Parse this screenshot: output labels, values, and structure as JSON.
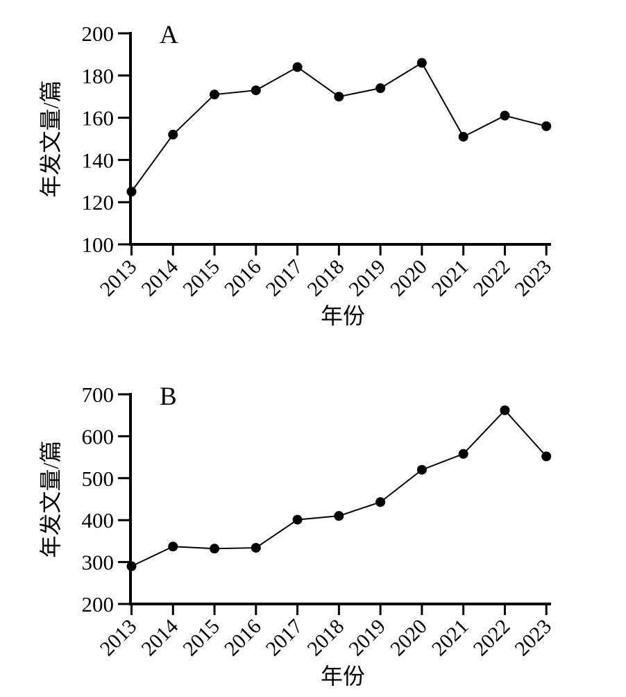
{
  "figure": {
    "background_color": "#ffffff",
    "ink_color": "#000000",
    "marker_color": "#000000"
  },
  "chart_data": [
    {
      "type": "line",
      "panel_label": "A",
      "title": "",
      "xlabel": "年份",
      "ylabel": "年发文量/篇",
      "x": [
        "2013",
        "2014",
        "2015",
        "2016",
        "2017",
        "2018",
        "2019",
        "2020",
        "2021",
        "2022",
        "2023"
      ],
      "values": [
        125,
        152,
        171,
        173,
        184,
        170,
        174,
        186,
        151,
        161,
        156
      ],
      "ylim": [
        100,
        200
      ],
      "ytick_step": 20,
      "yticks": [
        100,
        120,
        140,
        160,
        180,
        200
      ],
      "grid": false,
      "legend": "none",
      "marker": "filled-circle",
      "line_color": "#000000"
    },
    {
      "type": "line",
      "panel_label": "B",
      "title": "",
      "xlabel": "年份",
      "ylabel": "年发文量/篇",
      "x": [
        "2013",
        "2014",
        "2015",
        "2016",
        "2017",
        "2018",
        "2019",
        "2020",
        "2021",
        "2022",
        "2023"
      ],
      "values": [
        290,
        337,
        332,
        334,
        401,
        410,
        443,
        520,
        558,
        662,
        552
      ],
      "ylim": [
        200,
        700
      ],
      "ytick_step": 100,
      "yticks": [
        200,
        300,
        400,
        500,
        600,
        700
      ],
      "grid": false,
      "legend": "none",
      "marker": "filled-circle",
      "line_color": "#000000"
    }
  ]
}
